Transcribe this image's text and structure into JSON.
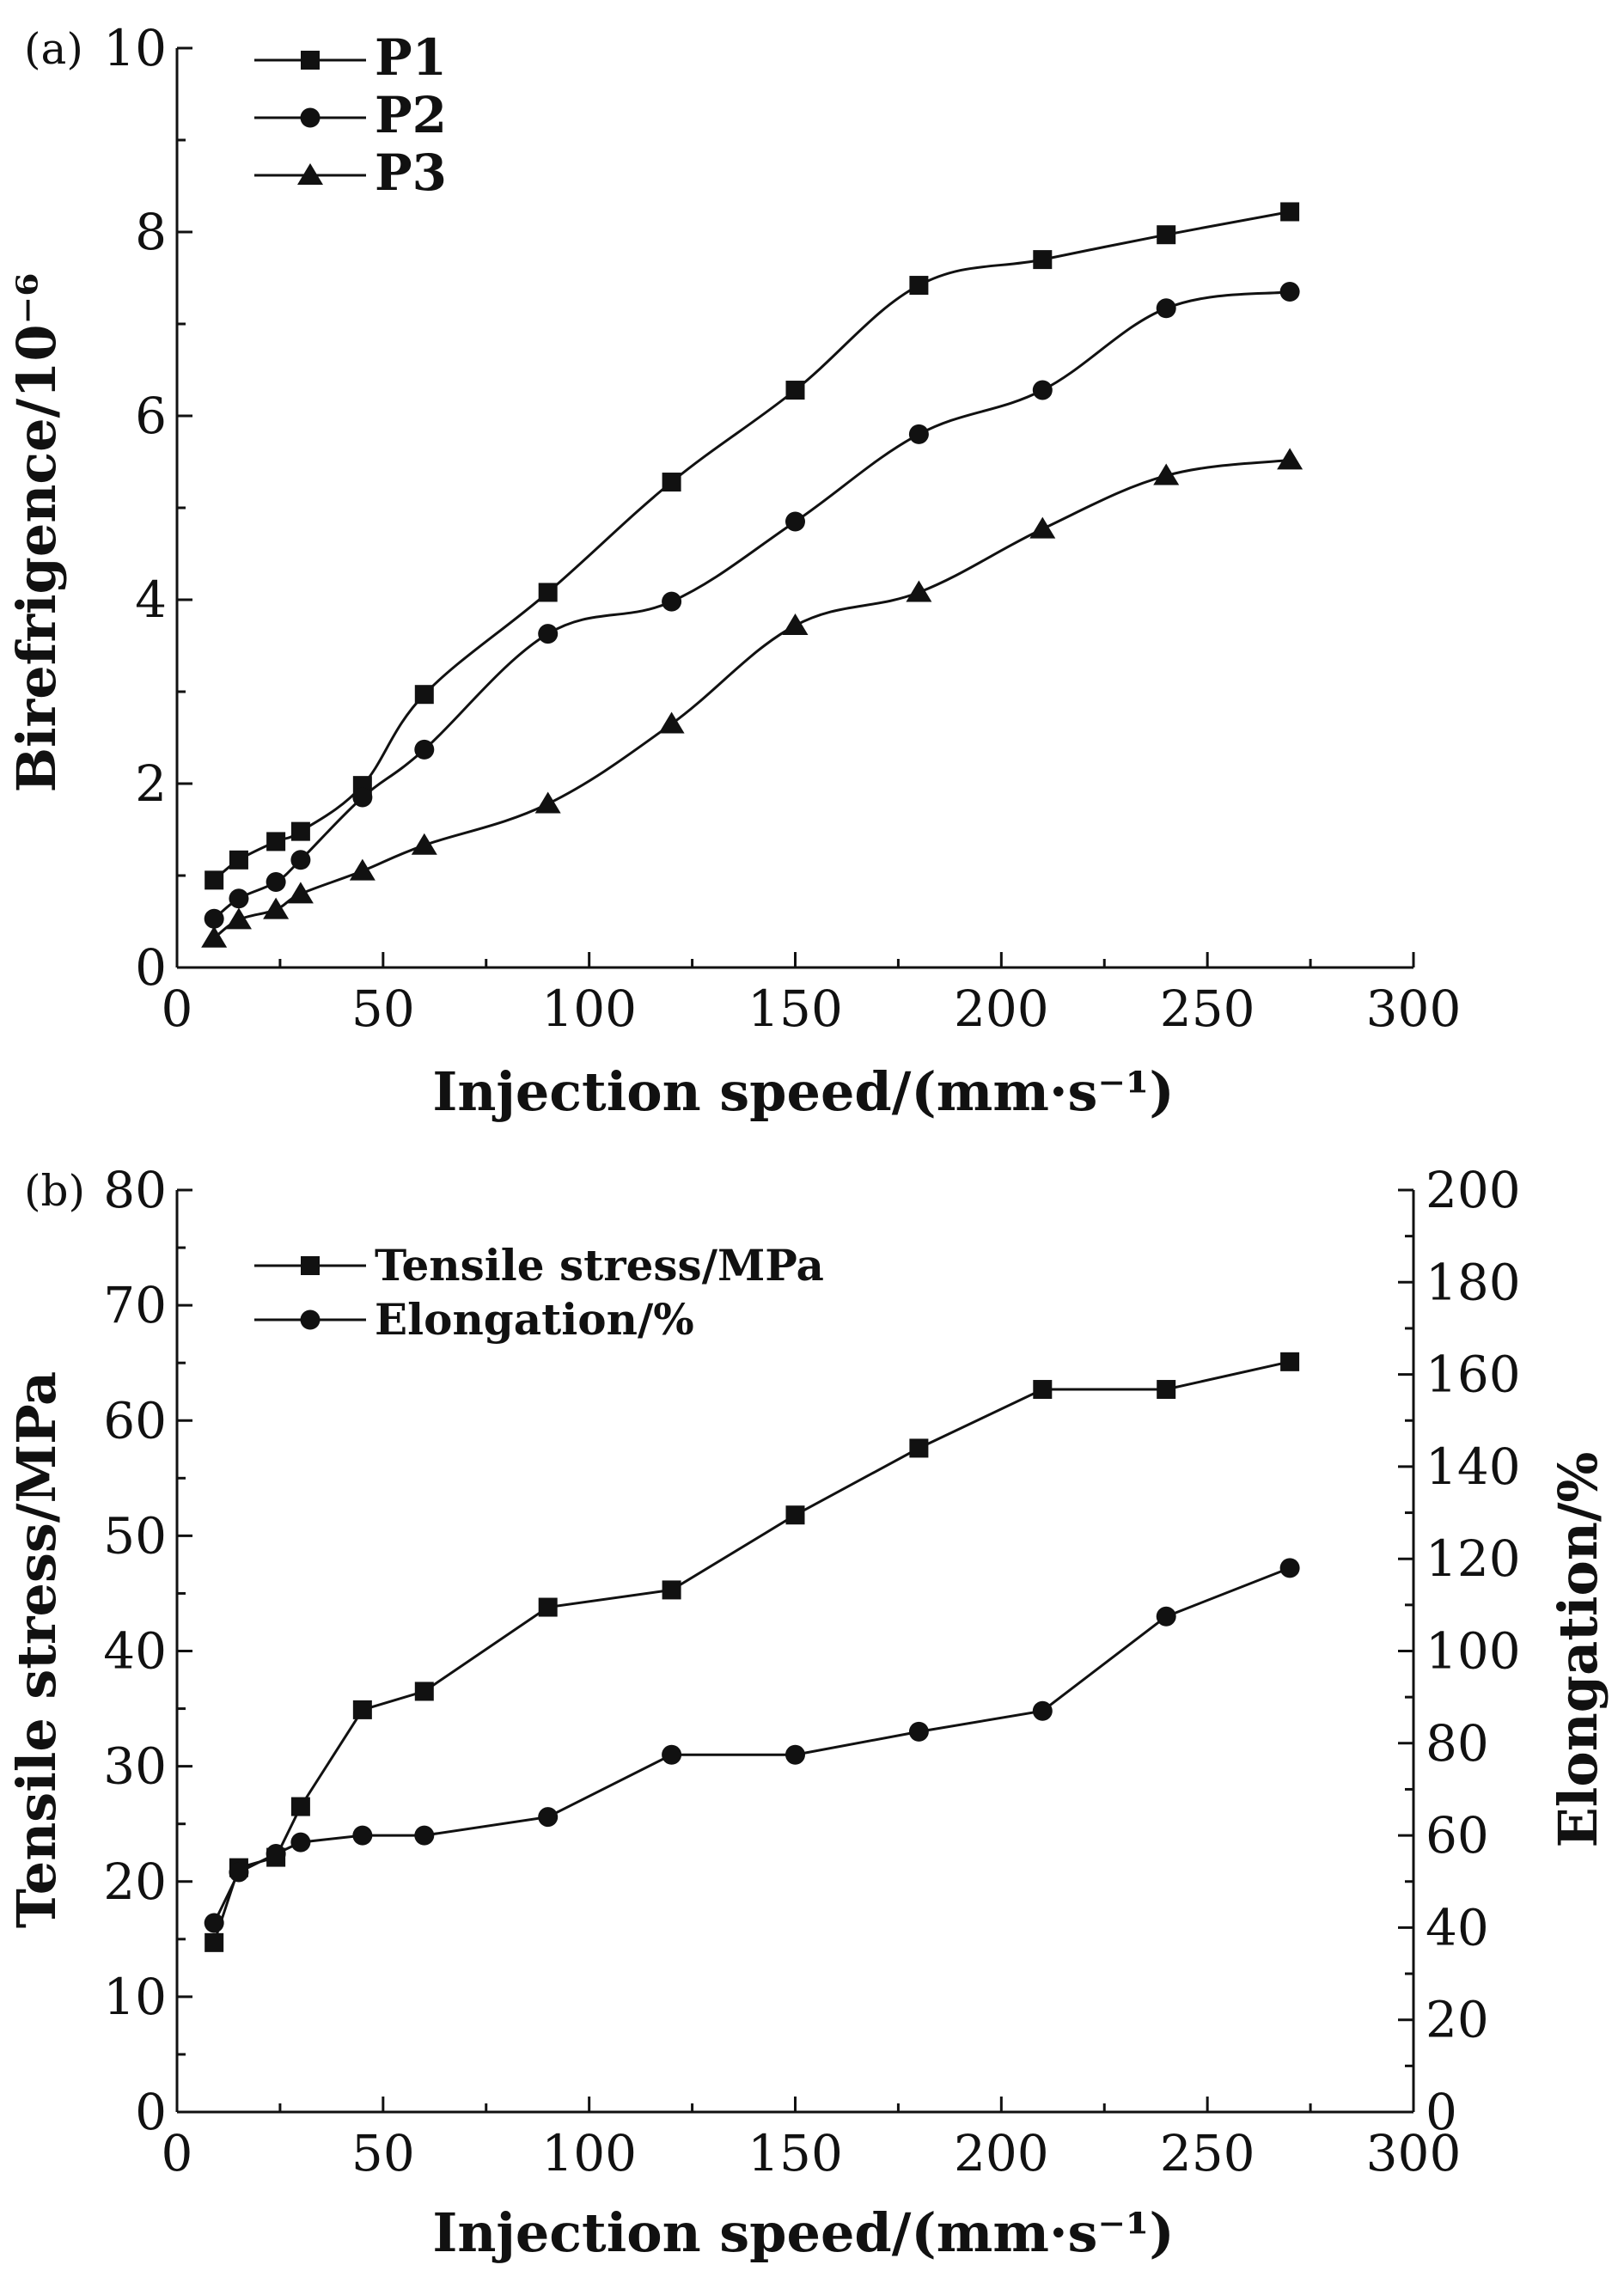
{
  "chart_data": [
    {
      "panel": "(a)",
      "type": "line",
      "xlabel": "Injection speed/(mm·s⁻¹)",
      "ylabel": "Birefrigence/10⁻⁶",
      "xlim": [
        0,
        300
      ],
      "ylim": [
        0,
        10
      ],
      "xticks": [
        0,
        50,
        100,
        150,
        200,
        250,
        300
      ],
      "yticks": [
        0,
        2,
        4,
        6,
        8,
        10
      ],
      "legend_position": "top-left",
      "grid": false,
      "smooth": true,
      "series": [
        {
          "name": "P1",
          "marker": "square",
          "x": [
            9,
            15,
            24,
            30,
            45,
            60,
            90,
            120,
            150,
            180,
            210,
            240,
            270
          ],
          "y": [
            0.95,
            1.17,
            1.37,
            1.48,
            1.98,
            2.97,
            4.08,
            5.28,
            6.28,
            7.42,
            7.7,
            7.97,
            8.22
          ]
        },
        {
          "name": "P2",
          "marker": "circle",
          "x": [
            9,
            15,
            24,
            30,
            45,
            60,
            90,
            120,
            150,
            180,
            210,
            240,
            270
          ],
          "y": [
            0.53,
            0.75,
            0.93,
            1.17,
            1.85,
            2.37,
            3.63,
            3.98,
            4.85,
            5.8,
            6.28,
            7.17,
            7.35
          ]
        },
        {
          "name": "P3",
          "marker": "triangle",
          "x": [
            9,
            15,
            24,
            30,
            45,
            60,
            90,
            120,
            150,
            180,
            210,
            240,
            270
          ],
          "y": [
            0.32,
            0.52,
            0.63,
            0.8,
            1.05,
            1.33,
            1.78,
            2.65,
            3.72,
            4.08,
            4.77,
            5.35,
            5.52
          ]
        }
      ]
    },
    {
      "panel": "(b)",
      "type": "line",
      "xlabel": "Injection speed/(mm·s⁻¹)",
      "ylabel": "Tensile stress/MPa",
      "y2label": "Elongation/%",
      "xlim": [
        0,
        300
      ],
      "ylim": [
        0,
        80
      ],
      "y2lim": [
        0,
        200
      ],
      "xticks": [
        0,
        50,
        100,
        150,
        200,
        250,
        300
      ],
      "yticks": [
        0,
        10,
        20,
        30,
        40,
        50,
        60,
        70,
        80
      ],
      "y2ticks": [
        0,
        20,
        40,
        60,
        80,
        100,
        120,
        140,
        160,
        180,
        200
      ],
      "legend_position": "top-left",
      "grid": false,
      "smooth": false,
      "series": [
        {
          "name": "Tensile stress/MPa",
          "marker": "square",
          "axis": "left",
          "x": [
            9,
            15,
            24,
            30,
            45,
            60,
            90,
            120,
            150,
            180,
            210,
            240,
            270
          ],
          "y": [
            14.7,
            21.2,
            22.1,
            26.5,
            34.9,
            36.5,
            43.8,
            45.3,
            51.8,
            57.6,
            62.7,
            62.7,
            65.1
          ]
        },
        {
          "name": "Elongation/%",
          "marker": "circle",
          "axis": "right",
          "x": [
            9,
            15,
            24,
            30,
            45,
            60,
            90,
            120,
            150,
            180,
            210,
            240,
            270
          ],
          "y": [
            41,
            52,
            56,
            58.5,
            60,
            60,
            64,
            77.5,
            77.5,
            82.5,
            87,
            107.5,
            118
          ]
        }
      ]
    }
  ]
}
